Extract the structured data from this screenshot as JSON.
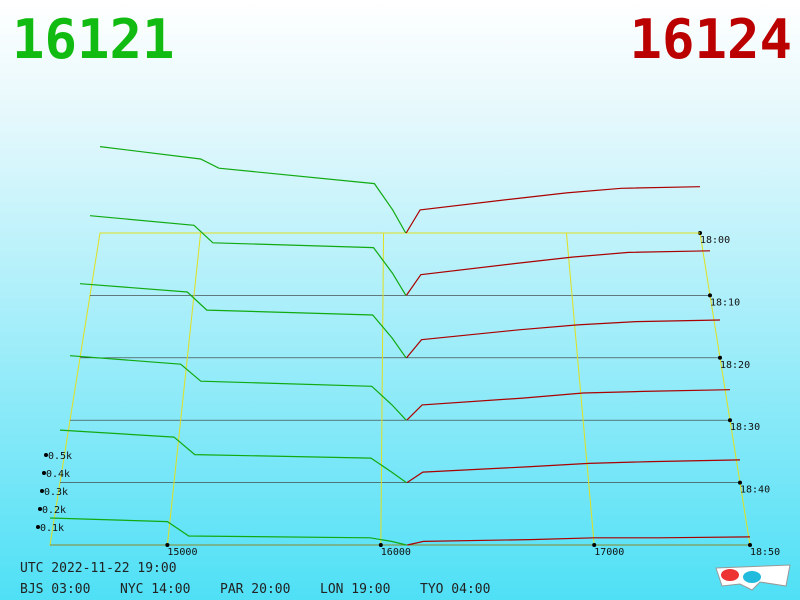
{
  "header": {
    "bid": "16121",
    "ask": "16124"
  },
  "footer": {
    "utc": "UTC 2022-11-22 19:00",
    "zones": [
      "BJS 03:00",
      "NYC 14:00",
      "PAR 20:00",
      "LON 19:00",
      "TYO 04:00"
    ]
  },
  "chart_data": {
    "type": "depth3d",
    "bid_color": "#11aa11",
    "ask_color": "#aa0000",
    "grid_color": "#e0e020",
    "bid_prices": [
      14450,
      15000,
      15100,
      15950,
      16050,
      16121
    ],
    "ask_prices": [
      16124,
      16200,
      16700,
      17000,
      17300,
      17730
    ],
    "times": [
      "18:00",
      "18:10",
      "18:20",
      "18:30",
      "18:40",
      "18:50"
    ],
    "snapshots": [
      {
        "bids": [
          560,
          480,
          420,
          320,
          150,
          0
        ],
        "asks": [
          0,
          150,
          220,
          260,
          290,
          300
        ]
      },
      {
        "bids": [
          500,
          440,
          330,
          300,
          140,
          0
        ],
        "asks": [
          0,
          130,
          200,
          240,
          270,
          280
        ]
      },
      {
        "bids": [
          450,
          400,
          290,
          260,
          120,
          0
        ],
        "asks": [
          0,
          110,
          170,
          200,
          220,
          230
        ]
      },
      {
        "bids": [
          380,
          330,
          230,
          200,
          90,
          0
        ],
        "asks": [
          0,
          90,
          130,
          160,
          170,
          180
        ]
      },
      {
        "bids": [
          300,
          260,
          160,
          140,
          60,
          0
        ],
        "asks": [
          0,
          60,
          90,
          110,
          120,
          130
        ]
      },
      {
        "bids": [
          150,
          130,
          50,
          40,
          20,
          0
        ],
        "asks": [
          0,
          20,
          30,
          40,
          40,
          45
        ]
      }
    ],
    "xlim": [
      14450,
      17730
    ],
    "xticks": [
      15000,
      16000,
      17000
    ],
    "ylim": [
      0,
      600
    ],
    "yticks": [
      {
        "value": 100,
        "label": "0.1k"
      },
      {
        "value": 200,
        "label": "0.2k"
      },
      {
        "value": 300,
        "label": "0.3k"
      },
      {
        "value": 400,
        "label": "0.4k"
      },
      {
        "value": 500,
        "label": "0.5k"
      }
    ]
  }
}
